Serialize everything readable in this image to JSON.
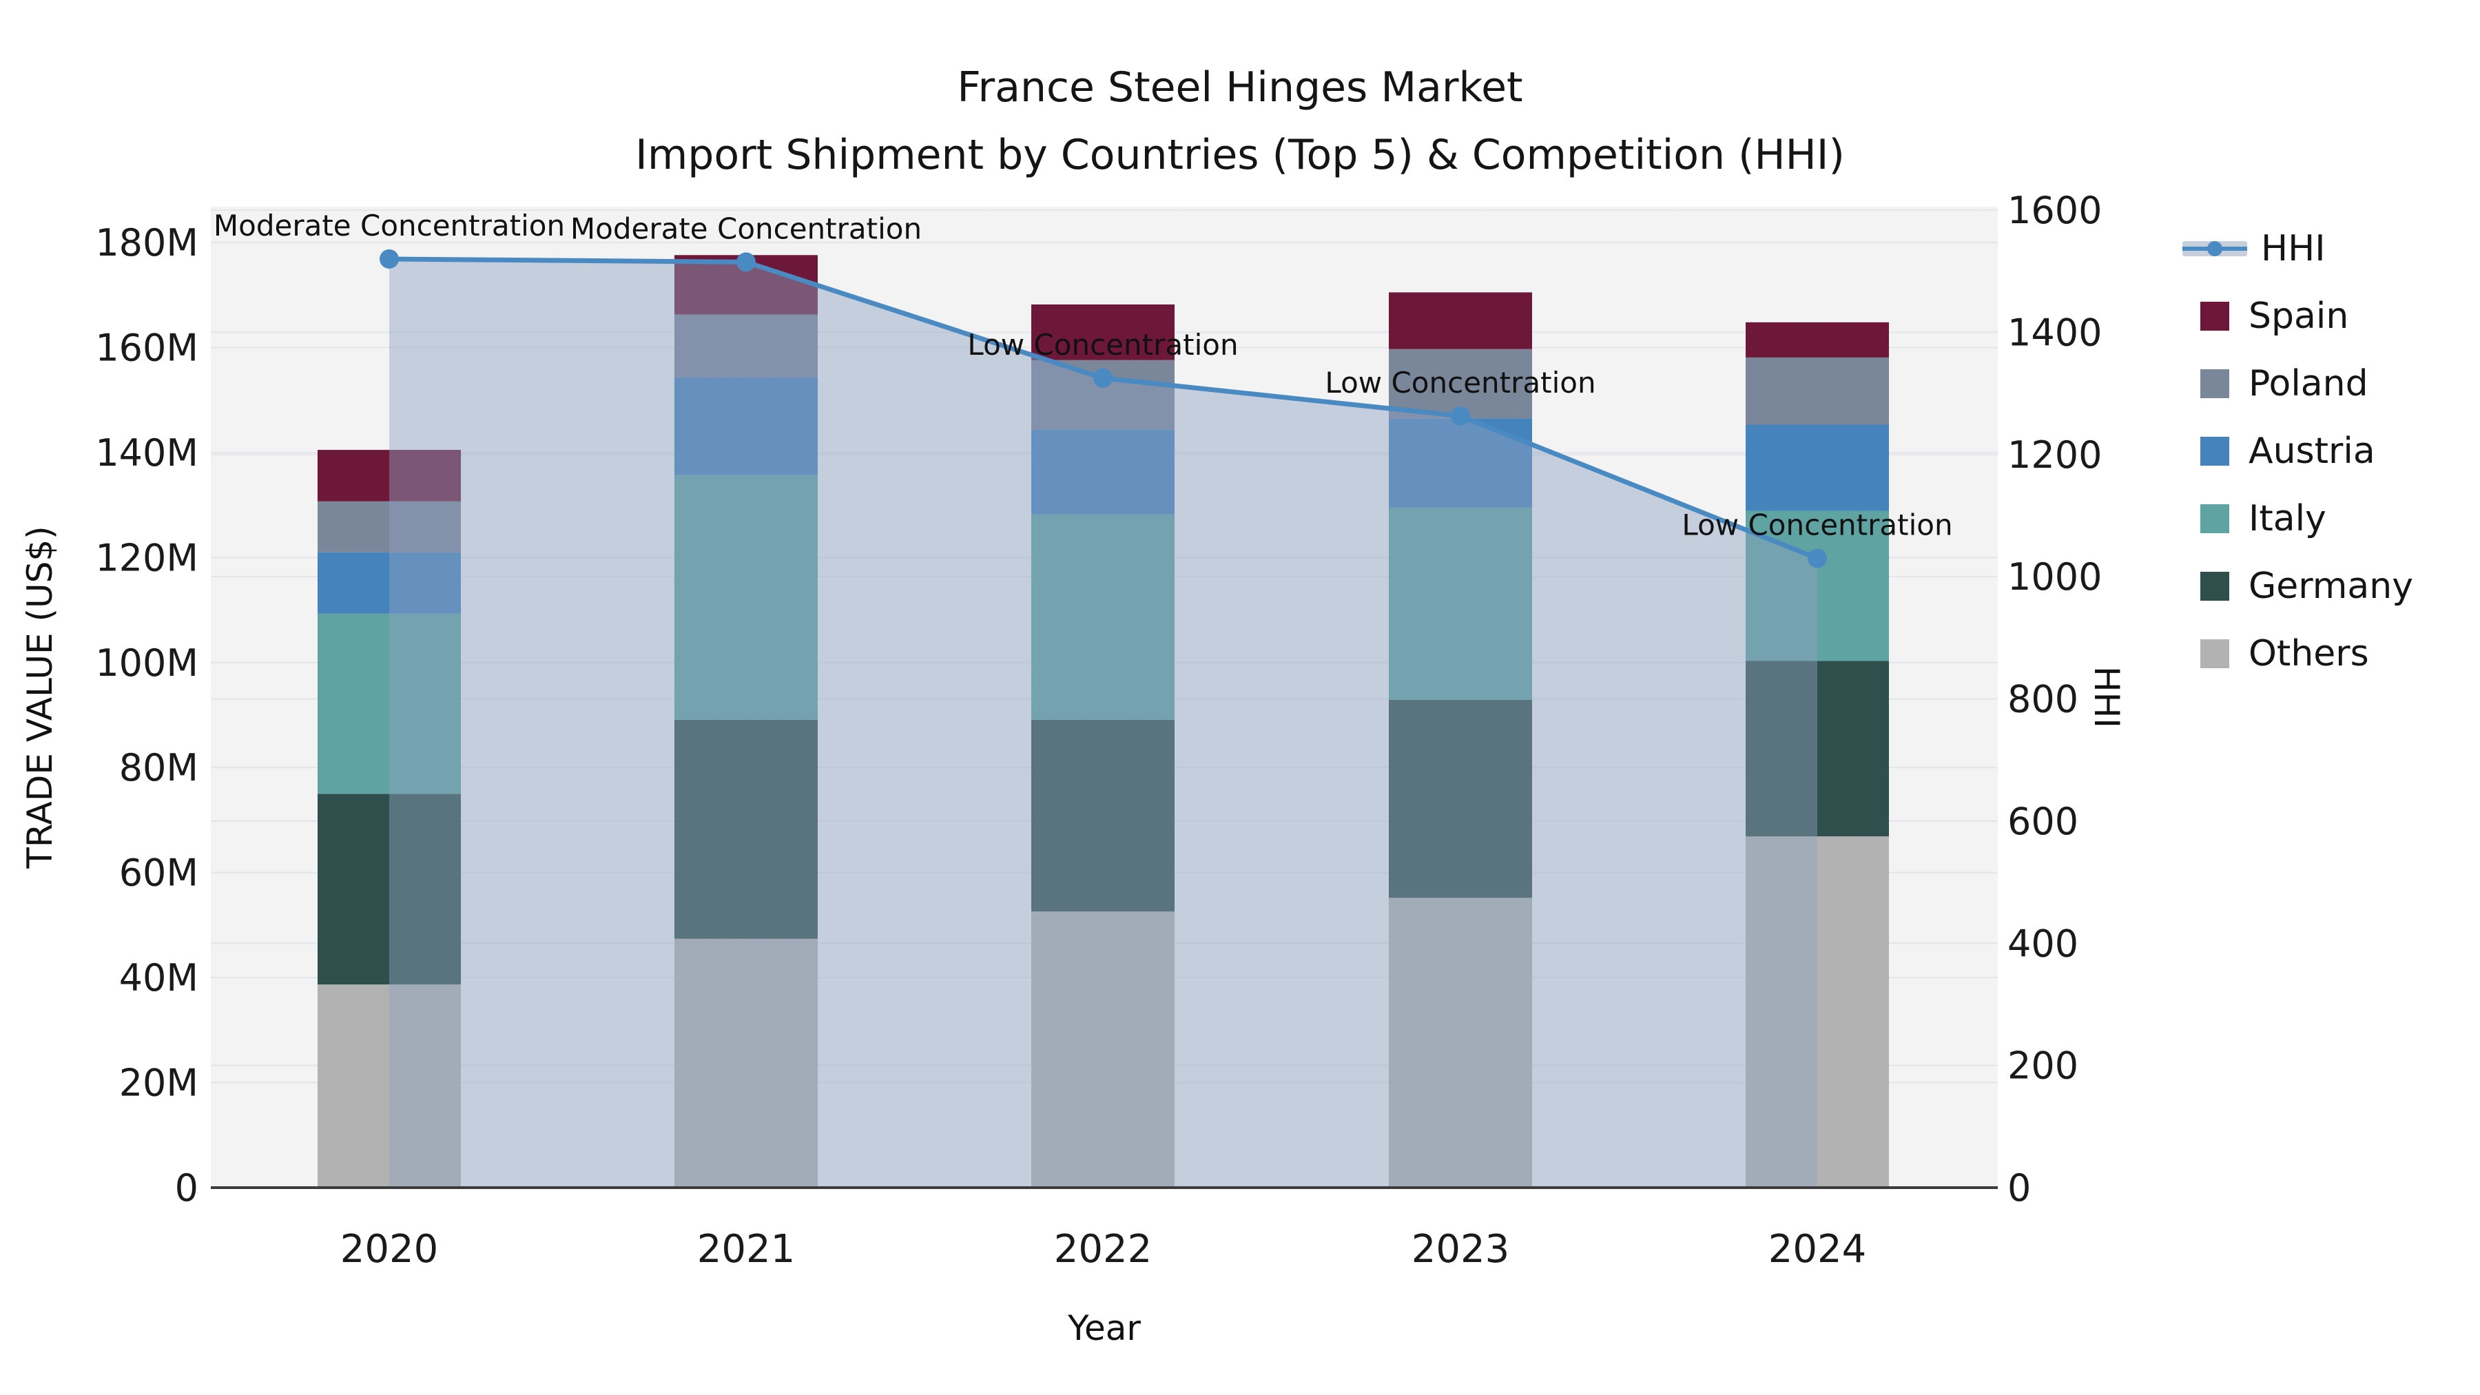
{
  "title": {
    "line1": "France Steel Hinges Market",
    "line2": "Import Shipment by Countries (Top 5) & Competition (HHI)"
  },
  "axes": {
    "left_title": "TRADE VALUE (US$)",
    "bottom_title": "Year",
    "right_title": "HHI",
    "left_tick_labels": [
      "0",
      "20M",
      "40M",
      "60M",
      "80M",
      "100M",
      "120M",
      "140M",
      "160M",
      "180M"
    ],
    "right_tick_labels": [
      "0",
      "200",
      "400",
      "600",
      "800",
      "1000",
      "1200",
      "1400",
      "1600"
    ]
  },
  "legend": {
    "entries": [
      {
        "label": "HHI",
        "type": "line",
        "color": "#4a8ac2",
        "band_color": "#c6cfdb"
      },
      {
        "label": "Spain",
        "type": "swatch",
        "color": "#6d1839"
      },
      {
        "label": "Poland",
        "type": "swatch",
        "color": "#7a8699"
      },
      {
        "label": "Austria",
        "type": "swatch",
        "color": "#4583bd"
      },
      {
        "label": "Italy",
        "type": "swatch",
        "color": "#60a3a3"
      },
      {
        "label": "Germany",
        "type": "swatch",
        "color": "#2f4f4c"
      },
      {
        "label": "Others",
        "type": "swatch",
        "color": "#b2b2b2"
      }
    ]
  },
  "chart_data": {
    "type": "bar+line",
    "title": "France Steel Hinges Market — Import Shipment by Countries (Top 5) & Competition (HHI)",
    "categories": [
      "2020",
      "2021",
      "2022",
      "2023",
      "2024"
    ],
    "bar_value_unit": "M US$ (trade value, left axis)",
    "stack_order_bottom_up": [
      "Others",
      "Germany",
      "Italy",
      "Austria",
      "Poland",
      "Spain"
    ],
    "series": [
      {
        "name": "Spain",
        "color": "#6d1839",
        "values": [
          9.8,
          11.3,
          10.6,
          10.8,
          6.7
        ]
      },
      {
        "name": "Poland",
        "color": "#7a8699",
        "values": [
          9.7,
          12.0,
          13.2,
          13.2,
          12.8
        ]
      },
      {
        "name": "Austria",
        "color": "#4583bd",
        "values": [
          11.7,
          18.6,
          16.2,
          17.0,
          16.4
        ]
      },
      {
        "name": "Italy",
        "color": "#60a3a3",
        "values": [
          34.3,
          46.6,
          39.1,
          36.6,
          28.6
        ]
      },
      {
        "name": "Germany",
        "color": "#2f4f4c",
        "values": [
          36.3,
          41.7,
          36.5,
          37.7,
          33.4
        ]
      },
      {
        "name": "Others",
        "color": "#b2b2b2",
        "values": [
          38.7,
          47.4,
          52.6,
          55.2,
          66.9
        ]
      }
    ],
    "bar_totals": [
      140.5,
      177.6,
      168.2,
      170.5,
      164.8
    ],
    "hhi": {
      "name": "HHI",
      "axis": "right",
      "line_color": "#4a8ac2",
      "fill_color": "rgba(141,162,190,0.45)",
      "values": [
        1520,
        1515,
        1325,
        1263,
        1030
      ],
      "annotations": [
        "Moderate Concentration",
        "Moderate Concentration",
        "Low Concentration",
        "Low Concentration",
        "Low Concentration"
      ]
    },
    "xlabel": "Year",
    "ylabel_left": "TRADE VALUE (US$)",
    "ylabel_right": "HHI",
    "ylim_left": [
      0,
      180
    ],
    "ylim_right": [
      0,
      1600
    ],
    "grid": true,
    "legend_position": "right",
    "plot_bg_color": "#f3f3f4",
    "grid_color": "#e3e5e9",
    "axis_line_color": "#3c3c3c"
  }
}
